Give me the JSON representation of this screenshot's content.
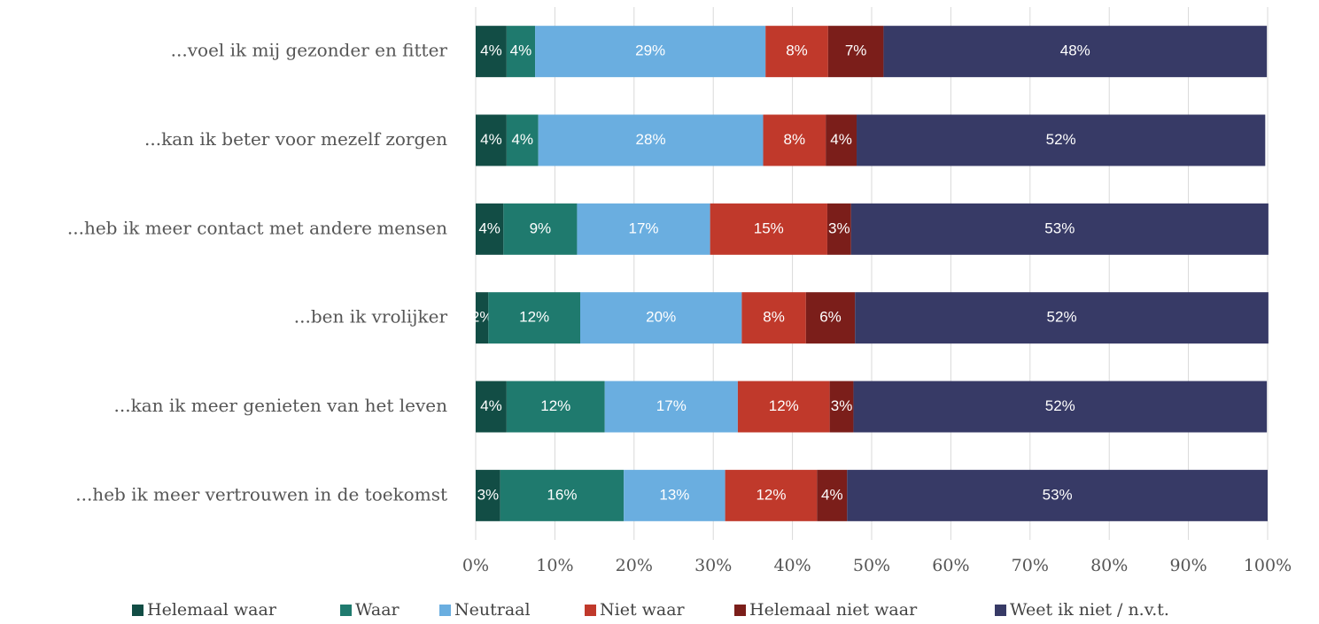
{
  "chart_data": {
    "type": "stacked-barh",
    "categories": [
      "...voel ik mij gezonder en fitter",
      "...kan ik beter voor mezelf zorgen",
      "...heb ik meer contact met andere mensen",
      "...ben ik vrolijker",
      "...kan ik meer genieten van het leven",
      "...heb ik meer vertrouwen in de toekomst"
    ],
    "series": [
      {
        "name": "Helemaal waar",
        "color": "#124d45",
        "values": [
          3.9,
          3.9,
          3.5,
          1.6,
          3.9,
          3.1
        ],
        "value_labels": [
          "4%",
          "4%",
          "4%",
          "2%",
          "4%",
          "3%"
        ]
      },
      {
        "name": "Waar",
        "color": "#1f7a6e",
        "values": [
          3.6,
          4.0,
          9.3,
          11.6,
          12.4,
          15.6
        ],
        "value_labels": [
          "4%",
          "4%",
          "9%",
          "12%",
          "12%",
          "16%"
        ]
      },
      {
        "name": "Neutraal",
        "color": "#6aaee0",
        "values": [
          29.1,
          28.4,
          16.8,
          20.4,
          16.8,
          12.8
        ],
        "value_labels": [
          "29%",
          "28%",
          "17%",
          "20%",
          "17%",
          "13%"
        ]
      },
      {
        "name": "Niet waar",
        "color": "#c0392b",
        "values": [
          7.9,
          7.9,
          14.8,
          8.1,
          11.6,
          11.6
        ],
        "value_labels": [
          "8%",
          "8%",
          "15%",
          "8%",
          "12%",
          "12%"
        ]
      },
      {
        "name": "Helemaal niet waar",
        "color": "#7b1e1a",
        "values": [
          7.0,
          3.9,
          3.0,
          6.2,
          3.0,
          3.8
        ],
        "value_labels": [
          "7%",
          "4%",
          "3%",
          "6%",
          "3%",
          "4%"
        ]
      },
      {
        "name": "Weet ik niet / n.v.t.",
        "color": "#373a66",
        "values": [
          48.4,
          51.6,
          52.7,
          52.2,
          52.2,
          53.1
        ],
        "value_labels": [
          "48%",
          "52%",
          "53%",
          "52%",
          "52%",
          "53%"
        ]
      }
    ],
    "xlim": [
      0,
      100
    ],
    "xticks": [
      {
        "value": 0,
        "label": "0%"
      },
      {
        "value": 10,
        "label": "10%"
      },
      {
        "value": 20,
        "label": "20%"
      },
      {
        "value": 30,
        "label": "30%"
      },
      {
        "value": 40,
        "label": "40%"
      },
      {
        "value": 50,
        "label": "50%"
      },
      {
        "value": 60,
        "label": "60%"
      },
      {
        "value": 70,
        "label": "70%"
      },
      {
        "value": 80,
        "label": "80%"
      },
      {
        "value": 90,
        "label": "90%"
      },
      {
        "value": 100,
        "label": "100%"
      }
    ],
    "grid": true,
    "legend": "bottom"
  }
}
